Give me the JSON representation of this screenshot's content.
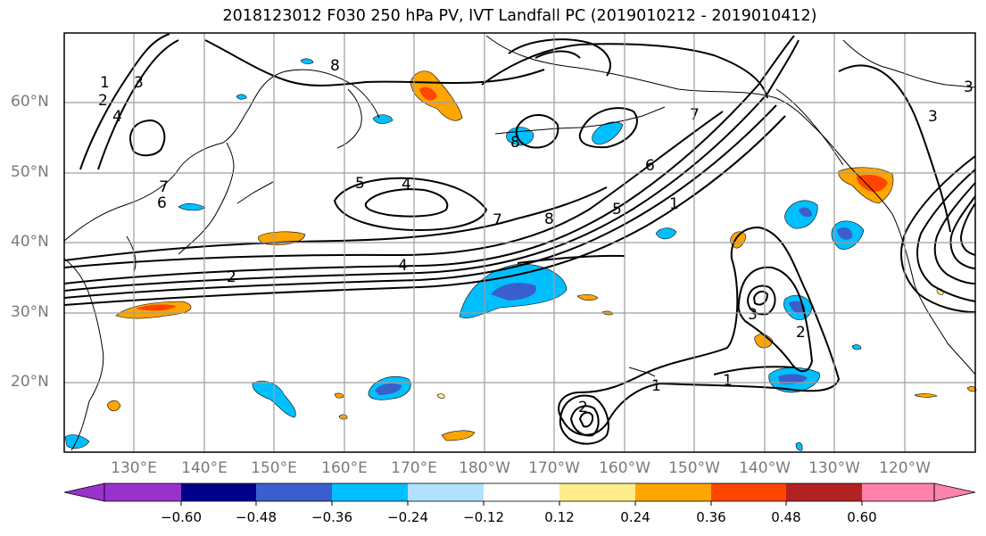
{
  "title": "2018123012 F030 250 hPa PV, IVT Landfall PC (2019010212 - 2019010412)",
  "map": {
    "lat_labels": [
      "60°N",
      "50°N",
      "40°N",
      "30°N",
      "20°N"
    ],
    "lon_labels": [
      "130°E",
      "140°E",
      "150°E",
      "160°E",
      "170°E",
      "180°W",
      "170°W",
      "160°W",
      "150°W",
      "140°W",
      "130°W",
      "120°W"
    ],
    "contour_labels": [
      "1",
      "2",
      "3",
      "4",
      "5",
      "6",
      "7",
      "8",
      "1",
      "2",
      "4",
      "6",
      "7",
      "8",
      "5",
      "4",
      "7",
      "8",
      "1",
      "3",
      "3",
      "2",
      "1",
      "2",
      "3"
    ]
  },
  "colorbar": {
    "tick_labels": [
      "−0.60",
      "−0.48",
      "−0.36",
      "−0.24",
      "−0.12",
      "0.12",
      "0.24",
      "0.36",
      "0.48",
      "0.60"
    ],
    "colors": [
      "#9932CC",
      "#00008B",
      "#3A5FCD",
      "#00BFFF",
      "#B0E2FF",
      "#FFFFFF",
      "#FFEC8B",
      "#FFA500",
      "#FF4500",
      "#B22222",
      "#FF82AB"
    ]
  }
}
